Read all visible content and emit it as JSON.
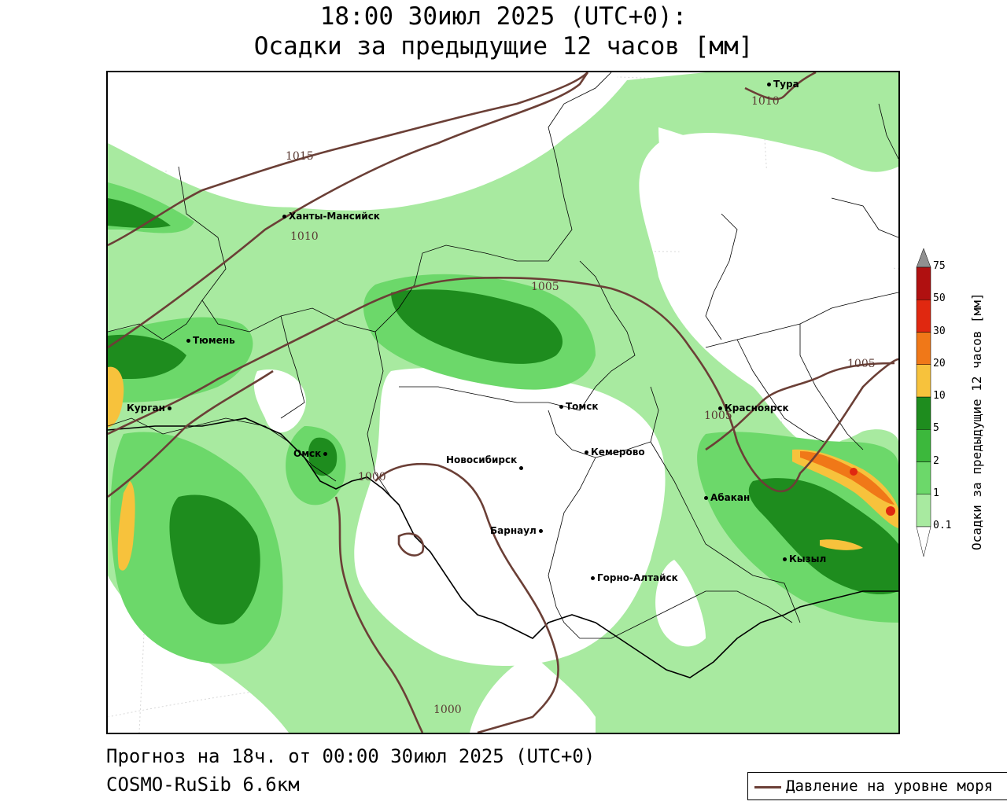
{
  "header": {
    "title_line1": "18:00 30июл 2025 (UTC+0):",
    "title_line2": "Осадки за предыдущие 12 часов [мм]"
  },
  "footer": {
    "forecast": "Прогноз на 18ч. от 00:00 30июл 2025 (UTC+0)",
    "model": "COSMO-RuSib 6.6км"
  },
  "legend": {
    "pressure_label": "Давление на уровне моря"
  },
  "colorbar": {
    "title": "Осадки за предыдущие 12 часов [мм]",
    "ticks": [
      "0.1",
      "1",
      "2",
      "5",
      "10",
      "20",
      "30",
      "50",
      "75"
    ],
    "colors": [
      "#a8eaa0",
      "#6cd86a",
      "#3cb83c",
      "#1e8c1e",
      "#f7c23c",
      "#f07818",
      "#e02810",
      "#b01010",
      "#909090"
    ]
  },
  "cities": [
    {
      "name": "Тура"
    },
    {
      "name": "Ханты-Мансийск"
    },
    {
      "name": "Тюмень"
    },
    {
      "name": "Курган"
    },
    {
      "name": "Омск"
    },
    {
      "name": "Томск"
    },
    {
      "name": "Красноярск"
    },
    {
      "name": "Новосибирск"
    },
    {
      "name": "Кемерово"
    },
    {
      "name": "Абакан"
    },
    {
      "name": "Барнаул"
    },
    {
      "name": "Кызыл"
    },
    {
      "name": "Горно-Алтайск"
    }
  ],
  "isobars": [
    "1015",
    "1010",
    "1010",
    "1005",
    "1005",
    "1005",
    "1000",
    "1000"
  ],
  "colors": {
    "isobar": "#6b3f36",
    "border": "#000000"
  }
}
